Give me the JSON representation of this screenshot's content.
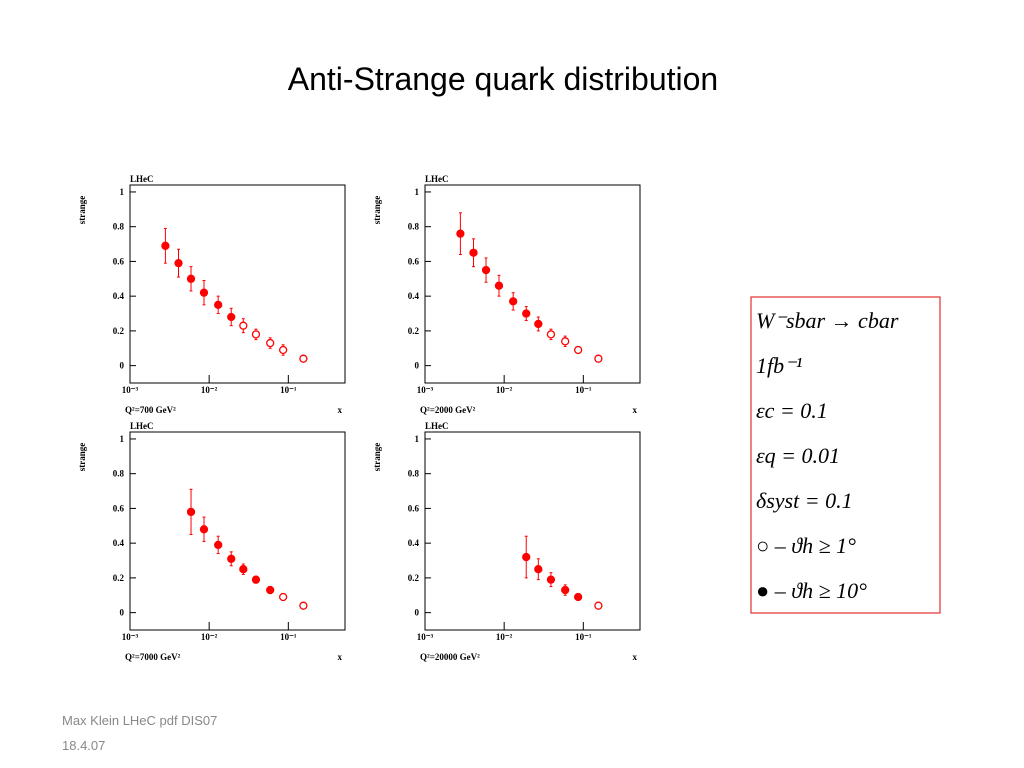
{
  "title": "Anti-Strange quark distribution",
  "footer": [
    "Max Klein LHeC pdf DIS07",
    "18.4.07"
  ],
  "legend_box": [
    "W⁻sbar → cbar",
    "1fb⁻¹",
    "εc = 0.1",
    "εq = 0.01",
    "δsyst = 0.1",
    "○ – ϑh ≥ 1°",
    "● – ϑh ≥ 10°"
  ],
  "chart_data": [
    {
      "type": "scatter",
      "label": "LHeC",
      "ylabel": "strange",
      "xlabel": "x",
      "note": "Q²=700 GeV²",
      "log_x": true,
      "color": "#ff0000",
      "xlim": [
        0.001,
        0.52
      ],
      "xticks": [
        {
          "value": 0.001,
          "label": "10⁻³"
        },
        {
          "value": 0.01,
          "label": "10⁻²"
        },
        {
          "value": 0.1,
          "label": "10⁻¹"
        }
      ],
      "ylim": [
        -0.1,
        1.04
      ],
      "yticks": [
        0,
        0.2,
        0.4,
        0.6,
        0.8,
        1
      ],
      "series": [
        {
          "marker": "filled",
          "x": [
            0.0028,
            0.0041,
            0.0059,
            0.0086,
            0.013,
            0.019
          ],
          "values": [
            0.69,
            0.59,
            0.5,
            0.42,
            0.35,
            0.28
          ],
          "errors": [
            0.1,
            0.08,
            0.07,
            0.07,
            0.05,
            0.05
          ]
        },
        {
          "marker": "open",
          "x": [
            0.027,
            0.039,
            0.059,
            0.086,
            0.155
          ],
          "values": [
            0.23,
            0.18,
            0.13,
            0.09,
            0.04
          ],
          "errors": [
            0.04,
            0.03,
            0.03,
            0.03,
            0.01
          ]
        }
      ]
    },
    {
      "type": "scatter",
      "label": "LHeC",
      "ylabel": "strange",
      "xlabel": "x",
      "note": "Q²=2000 GeV²",
      "log_x": true,
      "color": "#ff0000",
      "xlim": [
        0.001,
        0.52
      ],
      "xticks": [
        {
          "value": 0.001,
          "label": "10⁻³"
        },
        {
          "value": 0.01,
          "label": "10⁻²"
        },
        {
          "value": 0.1,
          "label": "10⁻¹"
        }
      ],
      "ylim": [
        -0.1,
        1.04
      ],
      "yticks": [
        0,
        0.2,
        0.4,
        0.6,
        0.8,
        1
      ],
      "series": [
        {
          "marker": "filled",
          "x": [
            0.0028,
            0.0041,
            0.0059,
            0.0086,
            0.013,
            0.019,
            0.027
          ],
          "values": [
            0.76,
            0.65,
            0.55,
            0.46,
            0.37,
            0.3,
            0.24
          ],
          "errors": [
            0.12,
            0.08,
            0.07,
            0.06,
            0.05,
            0.04,
            0.04
          ]
        },
        {
          "marker": "open",
          "x": [
            0.039,
            0.059,
            0.086,
            0.155
          ],
          "values": [
            0.18,
            0.14,
            0.09,
            0.04
          ],
          "errors": [
            0.03,
            0.03,
            0.02,
            0.01
          ]
        }
      ]
    },
    {
      "type": "scatter",
      "label": "LHeC",
      "ylabel": "strange",
      "xlabel": "x",
      "note": "Q²=7000 GeV²",
      "log_x": true,
      "color": "#ff0000",
      "xlim": [
        0.001,
        0.52
      ],
      "xticks": [
        {
          "value": 0.001,
          "label": "10⁻³"
        },
        {
          "value": 0.01,
          "label": "10⁻²"
        },
        {
          "value": 0.1,
          "label": "10⁻¹"
        }
      ],
      "ylim": [
        -0.1,
        1.04
      ],
      "yticks": [
        0,
        0.2,
        0.4,
        0.6,
        0.8,
        1
      ],
      "series": [
        {
          "marker": "filled",
          "x": [
            0.0059,
            0.0086,
            0.013,
            0.019,
            0.027,
            0.039,
            0.059
          ],
          "values": [
            0.58,
            0.48,
            0.39,
            0.31,
            0.25,
            0.19,
            0.13
          ],
          "errors": [
            0.13,
            0.07,
            0.05,
            0.04,
            0.03,
            0.02,
            0.02
          ]
        },
        {
          "marker": "open",
          "x": [
            0.086,
            0.155
          ],
          "values": [
            0.09,
            0.04
          ],
          "errors": [
            0.02,
            0.01
          ]
        }
      ]
    },
    {
      "type": "scatter",
      "label": "LHeC",
      "ylabel": "strange",
      "xlabel": "x",
      "note": "Q²=20000 GeV²",
      "log_x": true,
      "color": "#ff0000",
      "xlim": [
        0.001,
        0.52
      ],
      "xticks": [
        {
          "value": 0.001,
          "label": "10⁻³"
        },
        {
          "value": 0.01,
          "label": "10⁻²"
        },
        {
          "value": 0.1,
          "label": "10⁻¹"
        }
      ],
      "ylim": [
        -0.1,
        1.04
      ],
      "yticks": [
        0,
        0.2,
        0.4,
        0.6,
        0.8,
        1
      ],
      "series": [
        {
          "marker": "filled",
          "x": [
            0.019,
            0.027,
            0.039,
            0.059,
            0.086
          ],
          "values": [
            0.32,
            0.25,
            0.19,
            0.13,
            0.09
          ],
          "errors": [
            0.12,
            0.06,
            0.04,
            0.03,
            0.02
          ]
        },
        {
          "marker": "open",
          "x": [
            0.155
          ],
          "values": [
            0.04
          ],
          "errors": [
            0.01
          ]
        }
      ]
    }
  ]
}
